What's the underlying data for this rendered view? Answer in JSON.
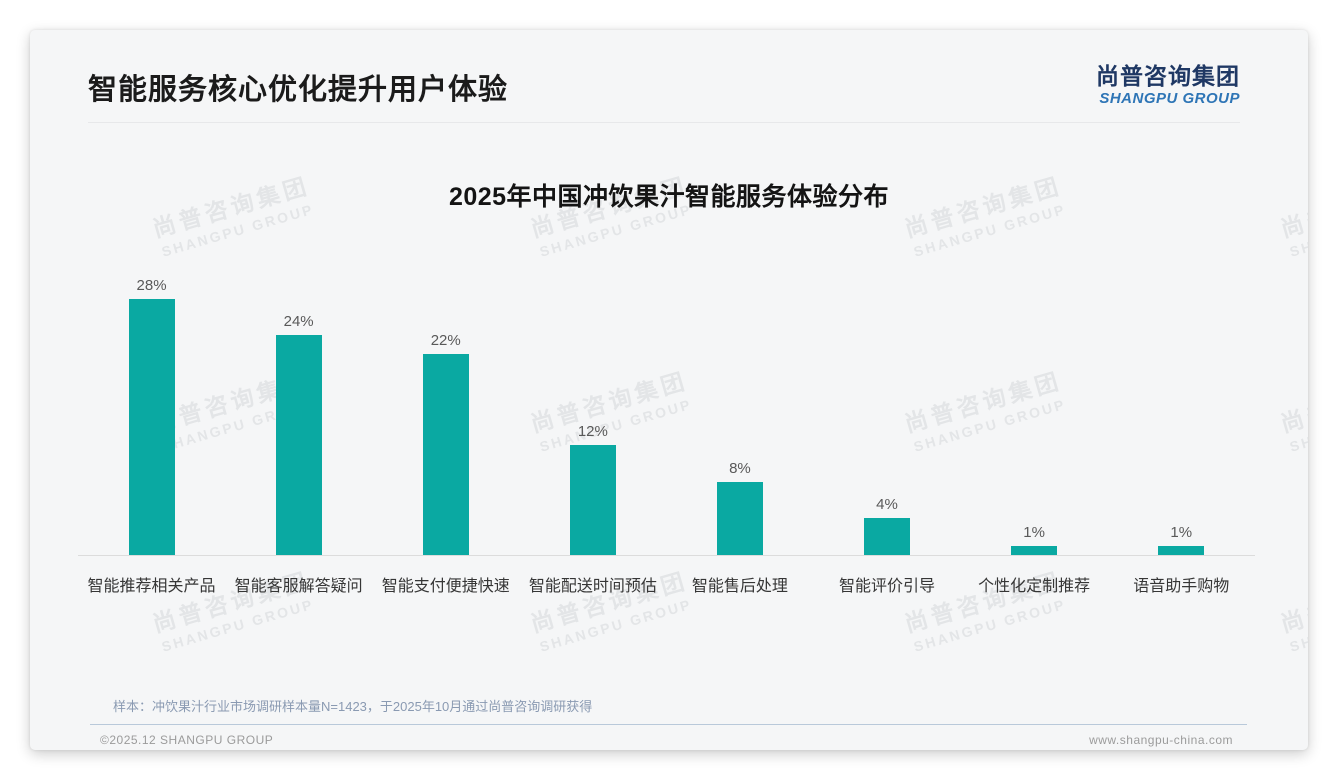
{
  "header": {
    "title": "智能服务核心优化提升用户体验",
    "logo_cn": "尚普咨询集团",
    "logo_en": "SHANGPU GROUP"
  },
  "chart_data": {
    "type": "bar",
    "title": "2025年中国冲饮果汁智能服务体验分布",
    "categories": [
      "智能推荐相关产品",
      "智能客服解答疑问",
      "智能支付便捷快速",
      "智能配送时间预估",
      "智能售后处理",
      "智能评价引导",
      "个性化定制推荐",
      "语音助手购物"
    ],
    "values": [
      28,
      24,
      22,
      12,
      8,
      4,
      1,
      1
    ],
    "value_labels": [
      "28%",
      "24%",
      "22%",
      "12%",
      "8%",
      "4%",
      "1%",
      "1%"
    ],
    "bar_color": "#0aa9a2",
    "xlabel": "",
    "ylabel": "",
    "ylim": [
      0,
      30
    ],
    "grid": false,
    "legend": false
  },
  "watermark": {
    "cn": "尚普咨询集团",
    "en": "SHANGPU GROUP"
  },
  "note": "样本：冲饮果汁行业市场调研样本量N=1423，于2025年10月通过尚普咨询调研获得",
  "footer": {
    "copyright": "©2025.12 SHANGPU GROUP",
    "website": "www.shangpu-china.com"
  }
}
